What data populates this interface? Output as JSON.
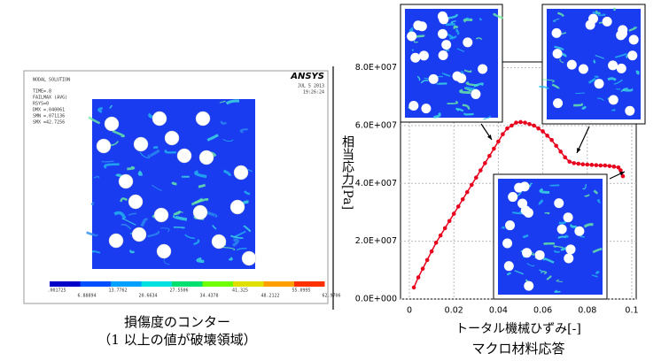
{
  "contour_panel": {
    "header": [
      "NODAL SOLUTION",
      "TIME=.8",
      "FAILMAX  (AVG)",
      "RSYS=0",
      "DMX =.040061",
      "SMN =.071136",
      "SMX =42.7256"
    ],
    "logo": "ANSYS",
    "date": "JUL  5 2013",
    "time": "19:26:24",
    "colorbar_labels_top": [
      ".001725",
      "13.7762",
      "27.5506",
      "41.325",
      "55.0995"
    ],
    "colorbar_labels_bottom": [
      "6.88894",
      "20.6634",
      "34.4378",
      "48.2122",
      "62.9706"
    ],
    "caption": [
      "損傷度のコンター",
      "（1 以上の値が破壊領域）"
    ]
  },
  "chart_data": {
    "type": "line",
    "y_label": "相当応力[Pa]",
    "x_label": "トータル機械ひずみ[-]",
    "caption": "マクロ材料応答",
    "x": [
      0.002,
      0.004,
      0.006,
      0.008,
      0.01,
      0.012,
      0.014,
      0.016,
      0.018,
      0.02,
      0.022,
      0.024,
      0.026,
      0.028,
      0.03,
      0.032,
      0.034,
      0.036,
      0.038,
      0.04,
      0.042,
      0.044,
      0.046,
      0.048,
      0.05,
      0.052,
      0.054,
      0.056,
      0.058,
      0.06,
      0.062,
      0.064,
      0.066,
      0.068,
      0.07,
      0.072,
      0.074,
      0.076,
      0.078,
      0.08,
      0.082,
      0.084,
      0.086,
      0.088,
      0.09,
      0.092,
      0.094,
      0.095,
      0.096
    ],
    "series": [
      {
        "name": "macro",
        "color": "#e8001c",
        "values": [
          4000000.0,
          7500000.0,
          10500000.0,
          13500000.0,
          16500000.0,
          19500000.0,
          22000000.0,
          24500000.0,
          27000000.0,
          29500000.0,
          32000000.0,
          34500000.0,
          37000000.0,
          39500000.0,
          42000000.0,
          44500000.0,
          47000000.0,
          49500000.0,
          52000000.0,
          54500000.0,
          57000000.0,
          59000000.0,
          60000000.0,
          61000000.0,
          61200000.0,
          61000000.0,
          60500000.0,
          60000000.0,
          59000000.0,
          58000000.0,
          56500000.0,
          55000000.0,
          53000000.0,
          51000000.0,
          49000000.0,
          47500000.0,
          47000000.0,
          46800000.0,
          46600000.0,
          46500000.0,
          46400000.0,
          46300000.0,
          46200000.0,
          46200000.0,
          46000000.0,
          45800000.0,
          45500000.0,
          44500000.0,
          42500000.0
        ]
      }
    ],
    "xlim": [
      -0.004,
      0.102
    ],
    "ylim": [
      0,
      82000000.0
    ],
    "xticks": [
      0,
      0.02,
      0.04,
      0.06,
      0.08,
      0.1
    ],
    "yticks": [
      {
        "value": 0,
        "label": "0.0E+000"
      },
      {
        "value": 20000000.0,
        "label": "2.0E+007"
      },
      {
        "value": 40000000.0,
        "label": "4.0E+007"
      },
      {
        "value": 60000000.0,
        "label": "6.0E+007"
      },
      {
        "value": 80000000.0,
        "label": "8.0E+007"
      }
    ],
    "grid": true
  }
}
